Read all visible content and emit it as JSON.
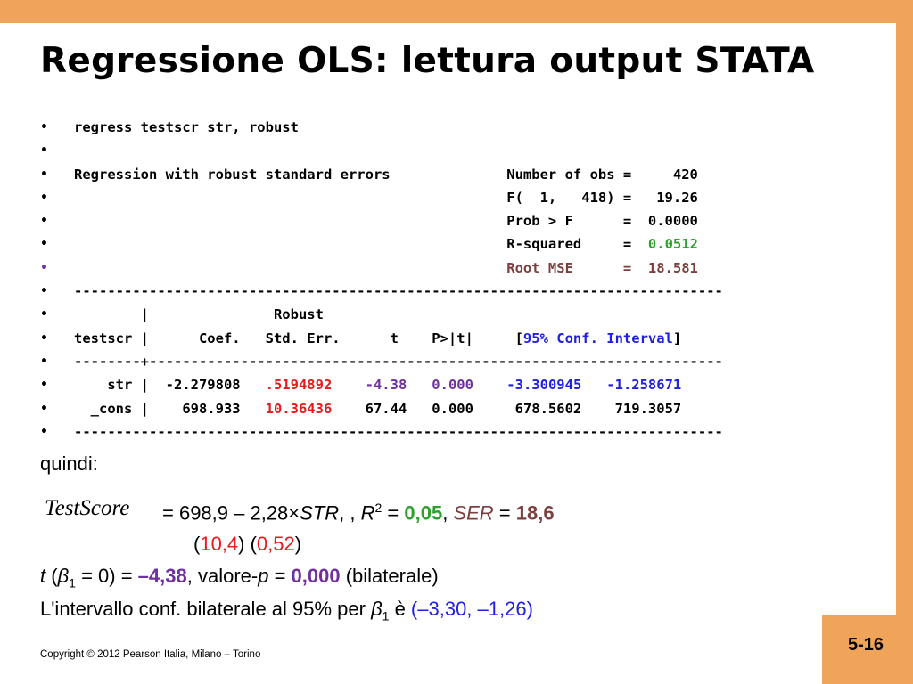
{
  "title": "Regressione OLS:  lettura output STATA",
  "bullet_glyph": "•",
  "lines": {
    "l1": "regress testscr str, robust",
    "l2": "",
    "l3": "Regression with robust standard errors              Number of obs =     420",
    "l4a": "                                                    F(  1,   418) =   19.26",
    "l5a": "                                                    Prob > F      =  0.0000",
    "l6a": "                                                    R-squared     =  ",
    "l6b": "0.0512",
    "l7a": "                                                    Root MSE      =  18.581",
    "l8": "------------------------------------------------------------------------------",
    "l9": "        |               Robust",
    "l10a": "testscr |      Coef.   Std. Err.      t    P>|t|     [",
    "l10b": "95% Conf. Interval",
    "l10c": "]",
    "l11": "--------+---------------------------------------------------------------------",
    "l12a": "    str |  -2.279808   ",
    "l12b": ".5194892",
    "l12c": "    ",
    "l12d": "-4.38",
    "l12e": "   ",
    "l12f": "0.000",
    "l12g": "    ",
    "l12h": "-3.300945   -1.258671",
    "l13a": "  _cons |    698.933   ",
    "l13b": "10.36436",
    "l13c": "    67.44   0.000     678.5602    719.3057",
    "l14": "------------------------------------------------------------------------------"
  },
  "quindi": "quindi:",
  "equation": {
    "lhs": "TestScore",
    "part1": "= 698,9 – 2,28×",
    "str": "STR",
    "part2": ", , ",
    "r": "R",
    "r_sup": "2",
    "eq": " = ",
    "r2_value": "0,05",
    "comma": ", ",
    "ser_label": "SER",
    "ser_eq": " = ",
    "ser_value": "18,6"
  },
  "std_errors": {
    "open1": "(",
    "se1": "10,4",
    "close_open": ") (",
    "se2": "0,52",
    "close2": ")"
  },
  "t_line": {
    "t": "t",
    "open": " (",
    "beta": "β",
    "beta_sub": "1",
    "rest": " = 0) = ",
    "t_value": "–4,38",
    "mid": ",    valore-",
    "p": "p",
    "p_eq": " = ",
    "p_value": "0,000",
    "tail": " (bilaterale)"
  },
  "ci_line": {
    "text": "L'intervallo conf. bilaterale al 95% per ",
    "beta": "β",
    "beta_sub": "1",
    "mid": " è ",
    "interval": "(–3,30, –1,26)"
  },
  "footer": "Copyright © 2012 Pearson Italia, Milano – Torino",
  "page_number": "5-16",
  "colors": {
    "border": "#f0a45a",
    "green": "#2ca02c",
    "red": "#e8191a",
    "purple": "#7030a0",
    "brown": "#7b3f3f",
    "blue": "#2020e0"
  }
}
